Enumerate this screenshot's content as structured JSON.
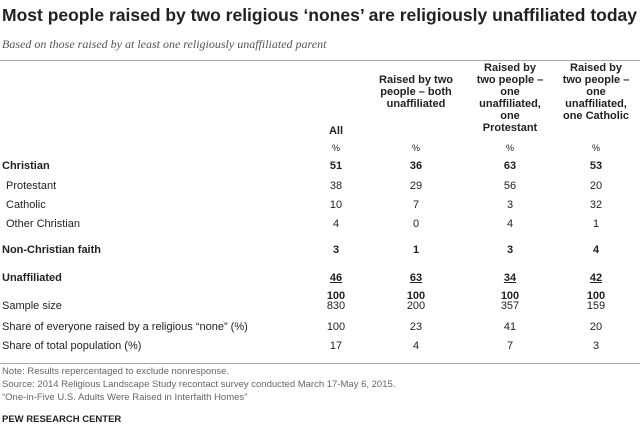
{
  "title": "Most people raised by two religious ‘nones’ are religiously unaffiliated today",
  "subtitle": "Based on those raised by at least one religiously unaffiliated parent",
  "columns": [
    {
      "label": "All",
      "unit": "%"
    },
    {
      "label": "Raised by two people – both unaffiliated",
      "unit": "%"
    },
    {
      "label": "Raised by two people – one unaffiliated, one Protestant",
      "unit": "%"
    },
    {
      "label": "Raised by two people – one unaffiliated, one Catholic",
      "unit": "%"
    }
  ],
  "rows": [
    {
      "label": "Christian",
      "values": [
        "51",
        "36",
        "63",
        "53"
      ]
    },
    {
      "label": "Protestant",
      "values": [
        "38",
        "29",
        "56",
        "20"
      ]
    },
    {
      "label": "Catholic",
      "values": [
        "10",
        "7",
        "3",
        "32"
      ]
    },
    {
      "label": "Other Christian",
      "values": [
        "4",
        "0",
        "4",
        "1"
      ]
    },
    {
      "label": "Non-Christian faith",
      "values": [
        "3",
        "1",
        "3",
        "4"
      ]
    },
    {
      "label": "Unaffiliated",
      "values": [
        "46",
        "63",
        "34",
        "42"
      ]
    },
    {
      "label": "",
      "values": [
        "100",
        "100",
        "100",
        "100"
      ]
    },
    {
      "label": "Sample size",
      "values": [
        "830",
        "200",
        "357",
        "159"
      ]
    },
    {
      "label": "Share of everyone raised by a religious “none” (%)",
      "values": [
        "100",
        "23",
        "41",
        "20"
      ]
    },
    {
      "label": "Share of total population (%)",
      "values": [
        "17",
        "4",
        "7",
        "3"
      ]
    }
  ],
  "notes": [
    "Note: Results repercentaged to exclude nonresponse.",
    "Source: 2014 Religious Landscape Study recontact survey conducted March 17-May 6, 2015.",
    "“One-in-Five U.S. Adults Were Raised in Interfaith Homes”"
  ],
  "brand": "PEW RESEARCH CENTER"
}
